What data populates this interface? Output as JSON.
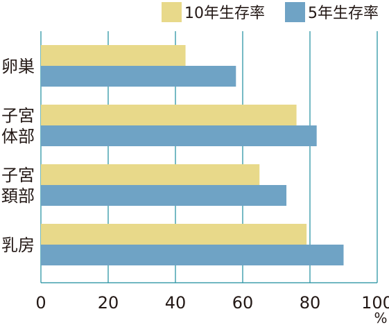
{
  "chart_data": {
    "type": "bar",
    "orientation": "horizontal",
    "categories": [
      {
        "lines": [
          "卵巣"
        ]
      },
      {
        "lines": [
          "子宮",
          "体部"
        ]
      },
      {
        "lines": [
          "子宮",
          "頚部"
        ]
      },
      {
        "lines": [
          "乳房"
        ]
      }
    ],
    "series": [
      {
        "name": "10年生存率",
        "color": "#e8d98a",
        "values": [
          43,
          76,
          65,
          79
        ]
      },
      {
        "name": "5年生存率",
        "color": "#6fa3c5",
        "values": [
          58,
          82,
          73,
          90
        ]
      }
    ],
    "xlim": [
      0,
      100
    ],
    "x_ticks": [
      "0",
      "20",
      "40",
      "60",
      "80",
      "100"
    ],
    "x_unit": "%",
    "grid": true,
    "grid_color": "#1a8c9c",
    "legend_position": "top-right"
  }
}
